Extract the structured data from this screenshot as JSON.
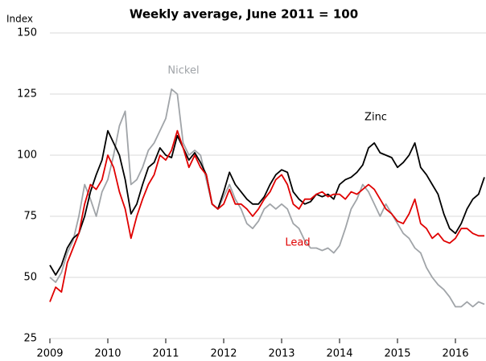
{
  "chart_data": {
    "type": "line",
    "title": "Weekly average, June 2011 = 100",
    "y_label": "Index",
    "x": [
      2009.0,
      2009.1,
      2009.2,
      2009.3,
      2009.4,
      2009.5,
      2009.6,
      2009.7,
      2009.8,
      2009.9,
      2010.0,
      2010.1,
      2010.2,
      2010.3,
      2010.4,
      2010.5,
      2010.6,
      2010.7,
      2010.8,
      2010.9,
      2011.0,
      2011.1,
      2011.2,
      2011.3,
      2011.4,
      2011.5,
      2011.6,
      2011.7,
      2011.8,
      2011.9,
      2012.0,
      2012.1,
      2012.2,
      2012.3,
      2012.4,
      2012.5,
      2012.6,
      2012.7,
      2012.8,
      2012.9,
      2013.0,
      2013.1,
      2013.2,
      2013.3,
      2013.4,
      2013.5,
      2013.6,
      2013.7,
      2013.8,
      2013.9,
      2014.0,
      2014.1,
      2014.2,
      2014.3,
      2014.4,
      2014.5,
      2014.6,
      2014.7,
      2014.8,
      2014.9,
      2015.0,
      2015.1,
      2015.2,
      2015.3,
      2015.4,
      2015.5,
      2015.6,
      2015.7,
      2015.8,
      2015.9,
      2016.0,
      2016.1,
      2016.2,
      2016.3,
      2016.4,
      2016.5
    ],
    "series": [
      {
        "name": "Nickel",
        "color": "#a0a4a8",
        "values": [
          50,
          48,
          52,
          60,
          65,
          75,
          88,
          82,
          75,
          85,
          90,
          100,
          112,
          118,
          88,
          90,
          95,
          102,
          105,
          110,
          115,
          127,
          125,
          105,
          100,
          102,
          100,
          90,
          80,
          78,
          83,
          88,
          82,
          78,
          72,
          70,
          73,
          78,
          80,
          78,
          80,
          78,
          72,
          70,
          65,
          62,
          62,
          61,
          62,
          60,
          63,
          70,
          78,
          82,
          88,
          85,
          80,
          75,
          80,
          76,
          72,
          68,
          66,
          62,
          60,
          54,
          50,
          47,
          45,
          42,
          38,
          38,
          40,
          38,
          40,
          39
        ]
      },
      {
        "name": "Zinc",
        "color": "#000000",
        "values": [
          55,
          51,
          55,
          62,
          66,
          68,
          75,
          85,
          92,
          98,
          110,
          105,
          100,
          90,
          76,
          80,
          88,
          95,
          97,
          103,
          100,
          99,
          108,
          103,
          98,
          101,
          97,
          92,
          80,
          78,
          85,
          93,
          88,
          85,
          82,
          80,
          80,
          83,
          88,
          92,
          94,
          93,
          85,
          82,
          80,
          81,
          84,
          83,
          84,
          82,
          88,
          90,
          91,
          93,
          96,
          103,
          105,
          101,
          100,
          99,
          95,
          97,
          100,
          105,
          95,
          92,
          88,
          84,
          76,
          70,
          68,
          72,
          78,
          82,
          84,
          91
        ]
      },
      {
        "name": "Lead",
        "color": "#e00000",
        "values": [
          40,
          46,
          44,
          56,
          62,
          68,
          80,
          88,
          86,
          90,
          100,
          95,
          85,
          78,
          66,
          75,
          82,
          88,
          92,
          100,
          98,
          102,
          110,
          103,
          95,
          100,
          95,
          92,
          80,
          78,
          80,
          86,
          80,
          80,
          78,
          75,
          78,
          82,
          85,
          90,
          92,
          88,
          80,
          78,
          82,
          82,
          84,
          85,
          83,
          84,
          84,
          82,
          85,
          84,
          86,
          88,
          86,
          82,
          78,
          76,
          73,
          72,
          76,
          82,
          72,
          70,
          66,
          68,
          65,
          64,
          66,
          70,
          70,
          68,
          67,
          67
        ]
      }
    ],
    "xlim": [
      2009,
      2016.5
    ],
    "xticks": [
      2009,
      2010,
      2011,
      2012,
      2013,
      2014,
      2015,
      2016
    ],
    "ylim": [
      25,
      150
    ],
    "yticks": [
      25,
      50,
      75,
      100,
      125,
      150
    ],
    "grid": true
  }
}
